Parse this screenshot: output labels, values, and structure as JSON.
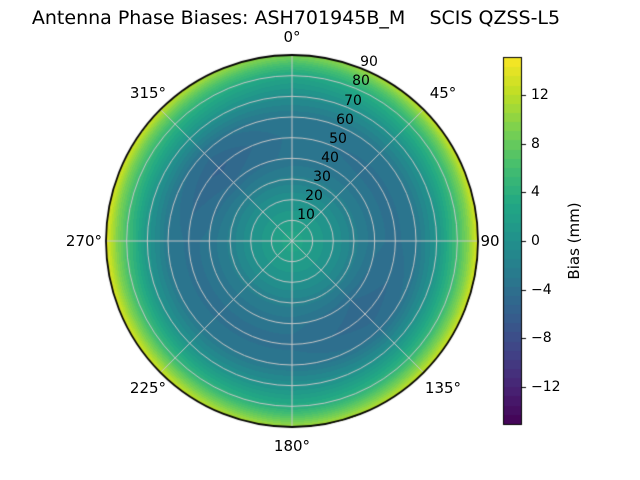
{
  "title": "Antenna Phase Biases: ASH701945B_M    SCIS QZSS-L5",
  "polar": {
    "theta_labels": [
      "0°",
      "45°",
      "90",
      "135°",
      "180°",
      "225°",
      "270°",
      "315°"
    ],
    "radial_labels": [
      "10",
      "20",
      "30",
      "40",
      "50",
      "60",
      "70",
      "80",
      "90"
    ]
  },
  "colorbar": {
    "label": "Bias (mm)",
    "tick_labels": [
      "12",
      "8",
      "4",
      "0",
      "−4",
      "−8",
      "−12"
    ]
  },
  "chart_data": {
    "type": "heatmap",
    "projection": "polar",
    "title": "Antenna Phase Biases: ASH701945B_M    SCIS QZSS-L5",
    "colormap": "viridis",
    "value_label": "Bias (mm)",
    "vmin": -15.1,
    "vmax": 15.1,
    "colorbar_ticks": [
      12,
      8,
      4,
      0,
      -4,
      -8,
      -12
    ],
    "theta_zero": "top",
    "theta_direction": "clockwise",
    "theta_ticks_deg": [
      0,
      45,
      90,
      135,
      180,
      225,
      270,
      315
    ],
    "radial_ticks_deg": [
      10,
      20,
      30,
      40,
      50,
      60,
      70,
      80,
      90
    ],
    "azimuth_deg": [
      0,
      45,
      90,
      135,
      180,
      225,
      270,
      315
    ],
    "radius_deg": [
      0,
      10,
      20,
      30,
      40,
      50,
      60,
      70,
      80,
      85,
      90
    ],
    "bias_mm": [
      [
        3,
        1.5,
        0,
        -2,
        -3.5,
        -3.5,
        -3,
        -0.5,
        2.5,
        5.5,
        9
      ],
      [
        3,
        1.5,
        0,
        -2,
        -3.5,
        -4.0,
        -3,
        0.0,
        4.5,
        8.0,
        12.5
      ],
      [
        3,
        1.5,
        0,
        -2,
        -3.5,
        -4.0,
        -3,
        0.5,
        6.0,
        9.5,
        14
      ],
      [
        3,
        1.5,
        0,
        -2,
        -4.5,
        -5.0,
        -4,
        0.0,
        5.0,
        9.0,
        13
      ],
      [
        3,
        1.5,
        0,
        -2,
        -3.5,
        -4.0,
        -3,
        0.0,
        3.5,
        7.0,
        11
      ],
      [
        3,
        1.5,
        0,
        -2,
        -3.5,
        -4.0,
        -3,
        0.0,
        5.0,
        9.0,
        13
      ],
      [
        3,
        1.5,
        0,
        -2,
        -3.5,
        -4.0,
        -3,
        0.5,
        6.0,
        9.5,
        14
      ],
      [
        3,
        1.5,
        0,
        -2,
        -4.5,
        -5.5,
        -4,
        0.0,
        4.5,
        8.0,
        12.5
      ]
    ],
    "grid_color": "#c8c8c8",
    "outline_color": "#000000",
    "contour_step_mm": 0.75
  }
}
